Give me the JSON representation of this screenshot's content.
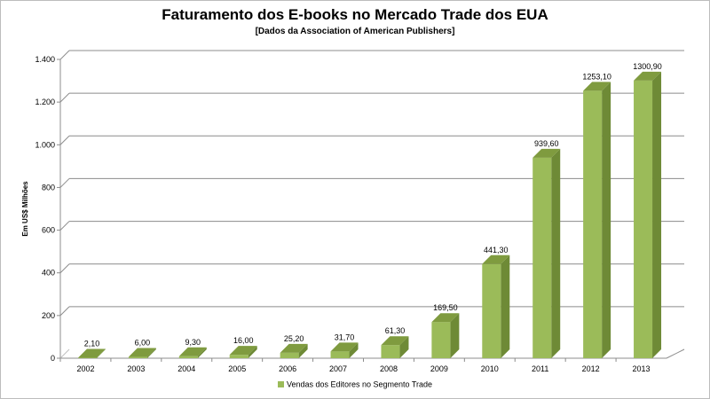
{
  "chart_data": {
    "type": "bar",
    "title": "Faturamento dos E-books no Mercado Trade dos EUA",
    "subtitle": "[Dados da Association of American Publishers]",
    "ylabel": "Em US$ Milhões",
    "xlabel": "",
    "categories": [
      "2002",
      "2003",
      "2004",
      "2005",
      "2006",
      "2007",
      "2008",
      "2009",
      "2010",
      "2011",
      "2012",
      "2013"
    ],
    "series": [
      {
        "name": "Vendas dos Editores no Segmento Trade",
        "values": [
          2.1,
          6.0,
          9.3,
          16.0,
          25.2,
          31.7,
          61.3,
          169.5,
          441.3,
          939.6,
          1253.1,
          1300.9
        ],
        "data_labels": [
          "2,10",
          "6,00",
          "9,30",
          "16,00",
          "25,20",
          "31,70",
          "61,30",
          "169,50",
          "441,30",
          "939,60",
          "1253,10",
          "1300,90"
        ]
      }
    ],
    "ylim": [
      0,
      1400
    ],
    "yticks": [
      0,
      200,
      400,
      600,
      800,
      1000,
      1200,
      1400
    ],
    "ytick_labels": [
      "0",
      "200",
      "400",
      "600",
      "800",
      "1.000",
      "1.200",
      "1.400"
    ],
    "grid": true,
    "legend_position": "bottom",
    "colors": {
      "bar_front": "#9bbb59",
      "bar_side": "#6e8a36",
      "bar_top": "#7f9b3f",
      "grid": "#8c8c8c"
    }
  }
}
